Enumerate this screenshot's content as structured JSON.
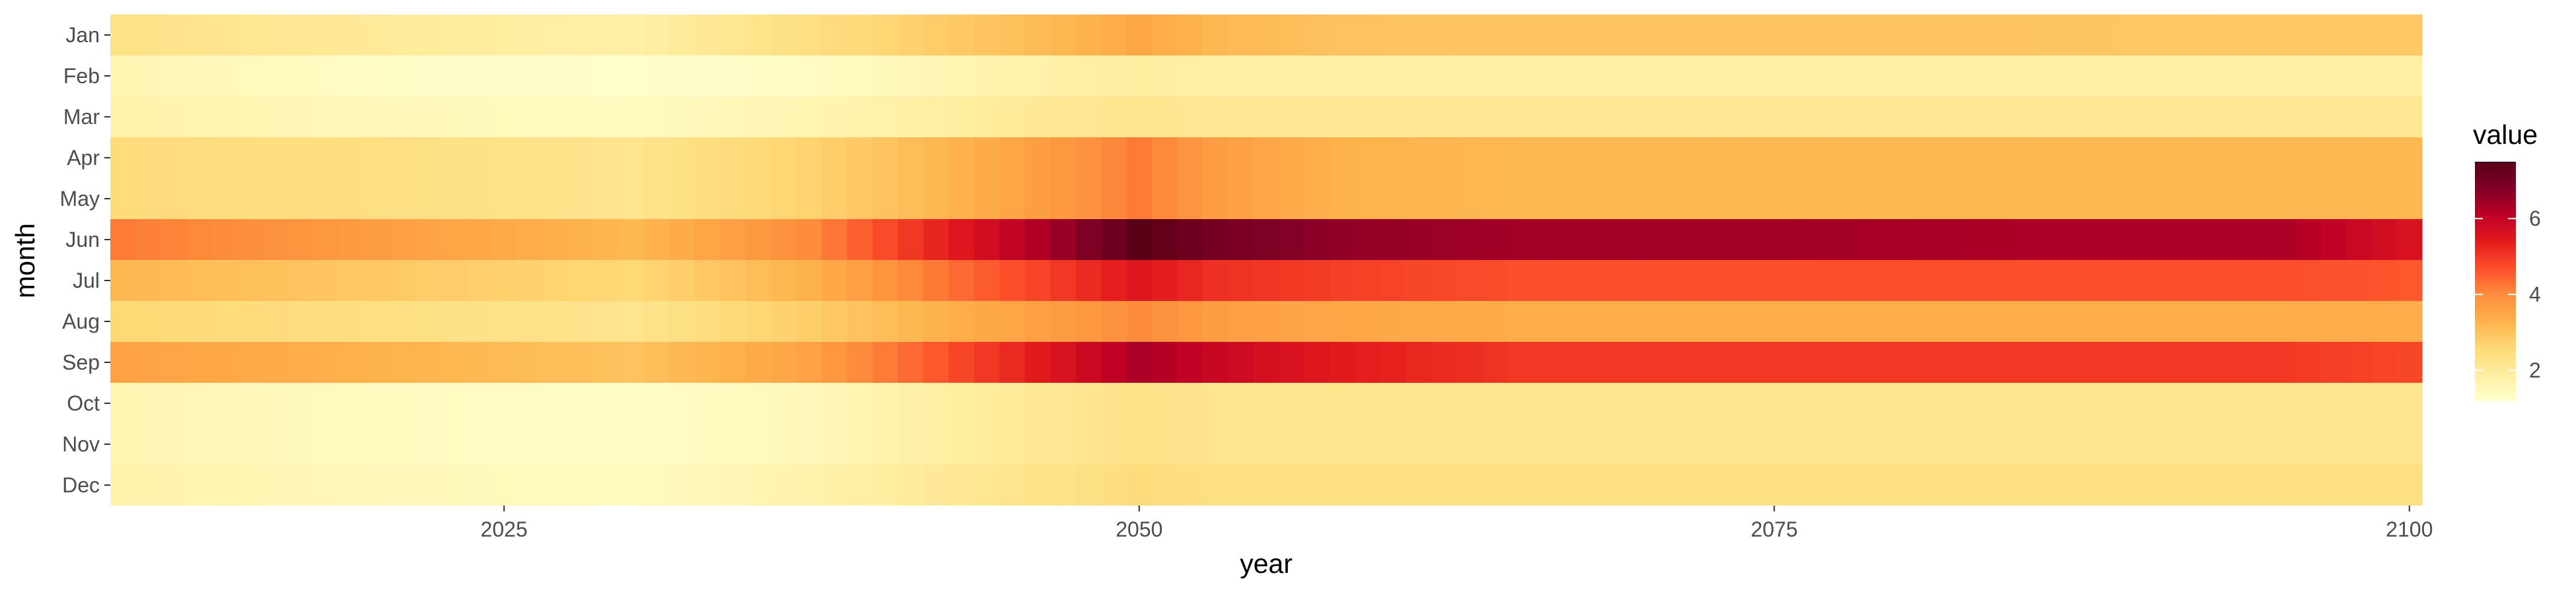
{
  "chart_data": {
    "type": "heatmap",
    "title": "",
    "xlabel": "year",
    "ylabel": "month",
    "x_start": 2010,
    "x_end": 2100,
    "xlim": [
      2009.5,
      2100.5
    ],
    "x_ticks": [
      "2025",
      "2050",
      "2075",
      "2100"
    ],
    "rows": [
      "Jan",
      "Feb",
      "Mar",
      "Apr",
      "May",
      "Jun",
      "Jul",
      "Aug",
      "Sep",
      "Oct",
      "Nov",
      "Dec"
    ],
    "profile_keys_years": [
      2010,
      2020,
      2030,
      2037,
      2043,
      2047,
      2050,
      2053,
      2058,
      2065,
      2075,
      2085,
      2095,
      2100
    ],
    "row_profiles": {
      "Jan": [
        2.3,
        2.0,
        1.8,
        2.4,
        2.9,
        3.2,
        3.5,
        3.2,
        3.0,
        2.95,
        2.95,
        2.95,
        2.9,
        2.9
      ],
      "Feb": [
        1.6,
        1.3,
        1.2,
        1.35,
        1.6,
        1.8,
        1.9,
        1.8,
        1.8,
        1.8,
        1.8,
        1.8,
        1.8,
        1.8
      ],
      "Mar": [
        1.7,
        1.5,
        1.4,
        1.6,
        1.9,
        2.1,
        2.2,
        2.1,
        2.1,
        2.1,
        2.1,
        2.1,
        2.1,
        2.1
      ],
      "Apr": [
        2.5,
        2.4,
        2.2,
        2.7,
        3.3,
        3.8,
        4.2,
        3.7,
        3.3,
        3.2,
        3.2,
        3.2,
        3.2,
        3.2
      ],
      "May": [
        2.5,
        2.4,
        2.2,
        2.7,
        3.3,
        3.8,
        4.2,
        3.7,
        3.3,
        3.2,
        3.2,
        3.2,
        3.2,
        3.2
      ],
      "Jun": [
        4.2,
        3.7,
        3.2,
        4.0,
        5.5,
        6.5,
        7.5,
        7.0,
        6.6,
        6.4,
        6.4,
        6.3,
        6.3,
        5.6
      ],
      "Jul": [
        3.2,
        2.9,
        2.6,
        3.3,
        4.4,
        5.0,
        5.5,
        5.1,
        4.9,
        4.7,
        4.7,
        4.7,
        4.7,
        4.6
      ],
      "Aug": [
        2.6,
        2.4,
        2.2,
        2.8,
        3.4,
        3.7,
        4.0,
        3.7,
        3.5,
        3.4,
        3.4,
        3.4,
        3.4,
        3.4
      ],
      "Sep": [
        3.6,
        3.3,
        3.0,
        3.6,
        4.8,
        5.6,
        6.3,
        5.9,
        5.4,
        5.0,
        5.0,
        5.0,
        5.0,
        4.8
      ],
      "Oct": [
        1.6,
        1.4,
        1.3,
        1.5,
        1.9,
        2.1,
        2.3,
        2.2,
        2.2,
        2.2,
        2.2,
        2.2,
        2.2,
        2.2
      ],
      "Nov": [
        1.6,
        1.4,
        1.3,
        1.5,
        1.9,
        2.1,
        2.3,
        2.2,
        2.2,
        2.2,
        2.2,
        2.2,
        2.2,
        2.2
      ],
      "Dec": [
        1.7,
        1.5,
        1.4,
        1.7,
        2.1,
        2.3,
        2.5,
        2.4,
        2.4,
        2.4,
        2.4,
        2.4,
        2.4,
        2.4
      ]
    },
    "value_range": [
      1.2,
      7.5
    ],
    "legend": {
      "title": "value",
      "ticks": [
        "2",
        "4",
        "6"
      ],
      "position": "right"
    },
    "colorscale": [
      "#ffffcc",
      "#ffeda0",
      "#fed976",
      "#feb24c",
      "#fd8d3c",
      "#fc4e2a",
      "#e31a1c",
      "#bd0026",
      "#800026",
      "#5a0016"
    ],
    "grid": false,
    "background": "#ffffff"
  }
}
